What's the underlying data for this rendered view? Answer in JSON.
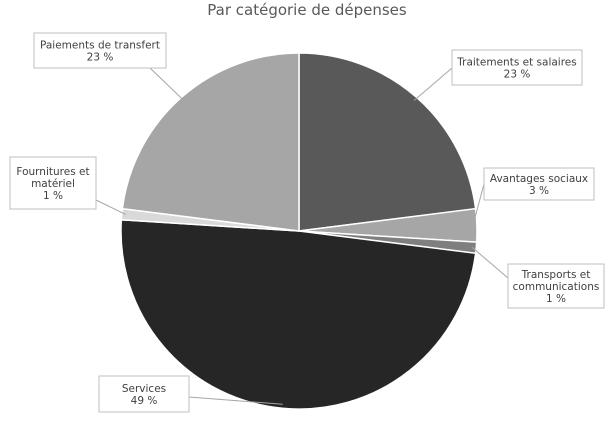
{
  "chart_data": {
    "type": "pie",
    "title": "Par catégorie de dépenses",
    "slices": [
      {
        "label": "Traitements et salaires",
        "value": 23,
        "value_label": "23 %",
        "color": "#595959"
      },
      {
        "label": "Avantages sociaux",
        "value": 3,
        "value_label": "3 %",
        "color": "#a6a6a6"
      },
      {
        "label": "Transports et communications",
        "value": 1,
        "value_label": "1 %",
        "color": "#7f7f7f"
      },
      {
        "label": "Services",
        "value": 49,
        "value_label": "49 %",
        "color": "#262626"
      },
      {
        "label": "Fournitures et matériel",
        "value": 1,
        "value_label": "1 %",
        "color": "#d9d9d9"
      },
      {
        "label": "Paiements de transfert",
        "value": 23,
        "value_label": "23 %",
        "color": "#a6a6a6"
      }
    ]
  }
}
